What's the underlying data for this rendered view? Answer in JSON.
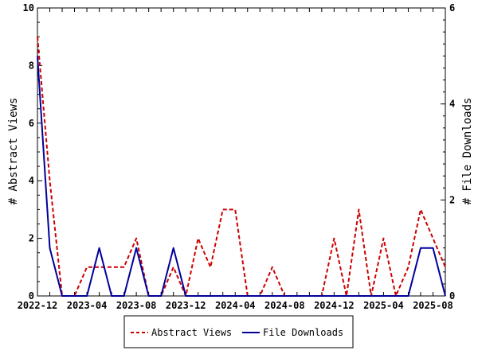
{
  "chart_data": {
    "type": "line",
    "x": [
      "2022-12",
      "2023-01",
      "2023-02",
      "2023-03",
      "2023-04",
      "2023-05",
      "2023-06",
      "2023-07",
      "2023-08",
      "2023-09",
      "2023-10",
      "2023-11",
      "2023-12",
      "2024-01",
      "2024-02",
      "2024-03",
      "2024-04",
      "2024-05",
      "2024-06",
      "2024-07",
      "2024-08",
      "2024-09",
      "2024-10",
      "2024-11",
      "2024-12",
      "2025-01",
      "2025-02",
      "2025-03",
      "2025-04",
      "2025-05",
      "2025-06",
      "2025-07",
      "2025-08",
      "2025-09"
    ],
    "x_tick_labels": [
      "2022-12",
      "2023-04",
      "2023-08",
      "2023-12",
      "2024-04",
      "2024-08",
      "2024-12",
      "2025-04",
      "2025-08"
    ],
    "series": [
      {
        "name": "Abstract Views",
        "axis": "left",
        "color": "#cc0000",
        "dash": "dashed",
        "values": [
          9,
          4,
          0,
          0,
          1,
          1,
          1,
          1,
          2,
          0,
          0,
          1,
          0,
          2,
          1,
          3,
          3,
          0,
          0,
          1,
          0,
          0,
          0,
          0,
          2,
          0,
          3,
          0,
          2,
          0,
          1,
          3,
          2,
          1
        ]
      },
      {
        "name": "File Downloads",
        "axis": "right",
        "color": "#000099",
        "dash": "solid",
        "values": [
          5,
          1,
          0,
          0,
          0,
          1,
          0,
          0,
          1,
          0,
          0,
          1,
          0,
          0,
          0,
          0,
          0,
          0,
          0,
          0,
          0,
          0,
          0,
          0,
          0,
          0,
          0,
          0,
          0,
          0,
          0,
          1,
          1,
          0
        ]
      }
    ],
    "y_left": {
      "label": "# Abstract Views",
      "range": [
        0,
        10
      ],
      "ticks": [
        0,
        2,
        4,
        6,
        8,
        10
      ]
    },
    "y_right": {
      "label": "# File Downloads",
      "range": [
        0,
        6
      ],
      "ticks": [
        0,
        2,
        4,
        6
      ]
    },
    "grid": false,
    "legend_position": "bottom-center"
  }
}
